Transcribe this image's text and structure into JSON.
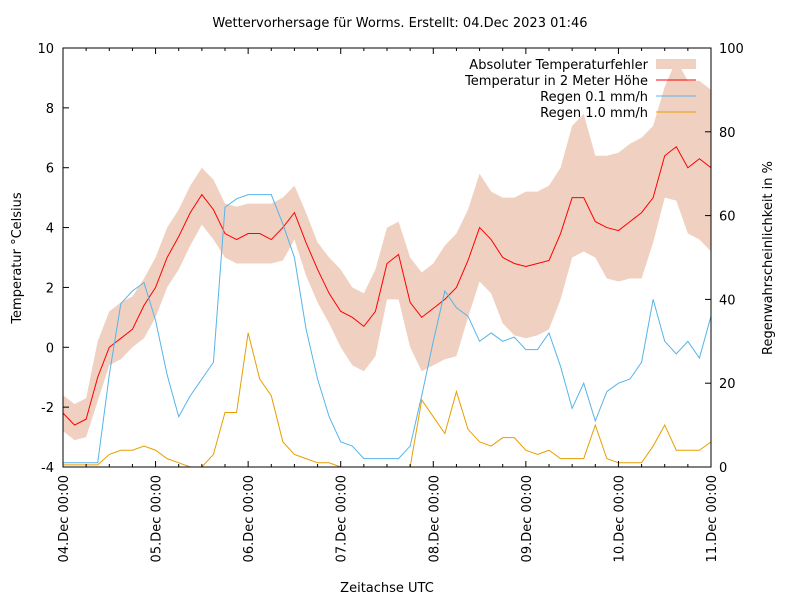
{
  "chart_data": {
    "type": "line",
    "title": "Wettervorhersage für Worms. Erstellt: 04.Dec 2023 01:46",
    "xlabel": "Zeitachse UTC",
    "ylabel": "Temperatur °Celsius",
    "y2label": "Regenwahrscheinlichkeit in %",
    "ylim": [
      -4,
      10
    ],
    "y2lim": [
      0,
      100
    ],
    "yticks": [
      "-4",
      "-2",
      "0",
      "2",
      "4",
      "6",
      "8",
      "10"
    ],
    "y2ticks": [
      "0",
      "20",
      "40",
      "60",
      "80",
      "100"
    ],
    "xticks": [
      "04.Dec 00:00",
      "05.Dec 00:00",
      "06.Dec 00:00",
      "07.Dec 00:00",
      "08.Dec 00:00",
      "09.Dec 00:00",
      "10.Dec 00:00",
      "11.Dec 00:00"
    ],
    "xlim": [
      "2023-12-04 00:00",
      "2023-12-11 00:00"
    ],
    "grid": false,
    "legend_position": "top-right",
    "x": [
      "2023-12-04 00:00",
      "2023-12-04 03:00",
      "2023-12-04 06:00",
      "2023-12-04 09:00",
      "2023-12-04 12:00",
      "2023-12-04 15:00",
      "2023-12-04 18:00",
      "2023-12-04 21:00",
      "2023-12-05 00:00",
      "2023-12-05 03:00",
      "2023-12-05 06:00",
      "2023-12-05 09:00",
      "2023-12-05 12:00",
      "2023-12-05 15:00",
      "2023-12-05 18:00",
      "2023-12-05 21:00",
      "2023-12-06 00:00",
      "2023-12-06 03:00",
      "2023-12-06 06:00",
      "2023-12-06 09:00",
      "2023-12-06 12:00",
      "2023-12-06 15:00",
      "2023-12-06 18:00",
      "2023-12-06 21:00",
      "2023-12-07 00:00",
      "2023-12-07 03:00",
      "2023-12-07 06:00",
      "2023-12-07 09:00",
      "2023-12-07 12:00",
      "2023-12-07 15:00",
      "2023-12-07 18:00",
      "2023-12-07 21:00",
      "2023-12-08 00:00",
      "2023-12-08 03:00",
      "2023-12-08 06:00",
      "2023-12-08 09:00",
      "2023-12-08 12:00",
      "2023-12-08 15:00",
      "2023-12-08 18:00",
      "2023-12-08 21:00",
      "2023-12-09 00:00",
      "2023-12-09 03:00",
      "2023-12-09 06:00",
      "2023-12-09 09:00",
      "2023-12-09 12:00",
      "2023-12-09 15:00",
      "2023-12-09 18:00",
      "2023-12-09 21:00",
      "2023-12-10 00:00",
      "2023-12-10 03:00",
      "2023-12-10 06:00",
      "2023-12-10 09:00",
      "2023-12-10 12:00",
      "2023-12-10 15:00",
      "2023-12-10 18:00",
      "2023-12-10 21:00",
      "2023-12-11 00:00"
    ],
    "series": [
      {
        "name": "Absoluter Temperaturfehler",
        "kind": "band",
        "axis": "y",
        "color": "#f0d0c0",
        "upper": [
          -1.6,
          -1.9,
          -1.7,
          0.2,
          1.2,
          1.5,
          1.7,
          2.3,
          3.0,
          4.0,
          4.6,
          5.4,
          6.0,
          5.6,
          4.8,
          4.7,
          4.8,
          4.8,
          4.8,
          5.0,
          5.4,
          4.5,
          3.5,
          3.0,
          2.6,
          2.0,
          1.8,
          2.6,
          4.0,
          4.2,
          3.0,
          2.5,
          2.8,
          3.4,
          3.8,
          4.6,
          5.8,
          5.2,
          5.0,
          5.0,
          5.2,
          5.2,
          5.4,
          6.0,
          7.4,
          7.8,
          6.4,
          6.4,
          6.5,
          6.8,
          7.0,
          7.4,
          8.7,
          9.6,
          8.9,
          8.9,
          8.6
        ],
        "lower": [
          -2.8,
          -3.1,
          -3.0,
          -1.8,
          -0.6,
          -0.4,
          0.0,
          0.3,
          1.0,
          2.0,
          2.6,
          3.4,
          4.1,
          3.6,
          3.0,
          2.8,
          2.8,
          2.8,
          2.8,
          2.9,
          3.6,
          2.4,
          1.5,
          0.8,
          0.0,
          -0.6,
          -0.8,
          -0.3,
          1.6,
          1.6,
          0.0,
          -0.8,
          -0.6,
          -0.4,
          -0.3,
          1.0,
          2.2,
          1.8,
          0.8,
          0.4,
          0.3,
          0.4,
          0.6,
          1.6,
          3.0,
          3.2,
          3.0,
          2.3,
          2.2,
          2.3,
          2.3,
          3.5,
          5.0,
          4.9,
          3.8,
          3.6,
          3.2
        ]
      },
      {
        "name": "Temperatur in 2 Meter Höhe",
        "kind": "line",
        "axis": "y",
        "color": "#ff0000",
        "values": [
          -2.2,
          -2.6,
          -2.4,
          -1.0,
          0.0,
          0.3,
          0.6,
          1.4,
          2.0,
          3.0,
          3.7,
          4.5,
          5.1,
          4.6,
          3.8,
          3.6,
          3.8,
          3.8,
          3.6,
          4.0,
          4.5,
          3.5,
          2.6,
          1.8,
          1.2,
          1.0,
          0.7,
          1.2,
          2.8,
          3.1,
          1.5,
          1.0,
          1.3,
          1.6,
          2.0,
          2.9,
          4.0,
          3.6,
          3.0,
          2.8,
          2.7,
          2.8,
          2.9,
          3.8,
          5.0,
          5.0,
          4.2,
          4.0,
          3.9,
          4.2,
          4.5,
          5.0,
          6.4,
          6.7,
          6.0,
          6.3,
          6.0
        ]
      },
      {
        "name": "Regen 0.1 mm/h",
        "kind": "line",
        "axis": "y2",
        "color": "#56b4e9",
        "values": [
          1,
          1,
          1,
          1,
          22,
          39,
          42,
          44,
          35,
          22,
          12,
          17,
          21,
          25,
          62,
          64,
          65,
          65,
          65,
          58,
          50,
          33,
          21,
          12,
          6,
          5,
          2,
          2,
          2,
          2,
          5,
          17,
          30,
          42,
          38,
          36,
          30,
          32,
          30,
          31,
          28,
          28,
          32,
          24,
          14,
          20,
          11,
          18,
          20,
          21,
          25,
          40,
          30,
          27,
          30,
          26,
          36
        ]
      },
      {
        "name": "Regen 1.0 mm/h",
        "kind": "line",
        "axis": "y2",
        "color": "#e69f00",
        "values": [
          0.5,
          0.5,
          0.5,
          0.5,
          3,
          4,
          4,
          5,
          4,
          2,
          1,
          0,
          0,
          3,
          13,
          13,
          32,
          21,
          17,
          6,
          3,
          2,
          1,
          1,
          0,
          0,
          0,
          0,
          0,
          0,
          0,
          16,
          12,
          8,
          18,
          9,
          6,
          5,
          7,
          7,
          4,
          3,
          4,
          2,
          2,
          2,
          10,
          2,
          1,
          1,
          1,
          5,
          10,
          4,
          4,
          4,
          6
        ]
      }
    ]
  }
}
